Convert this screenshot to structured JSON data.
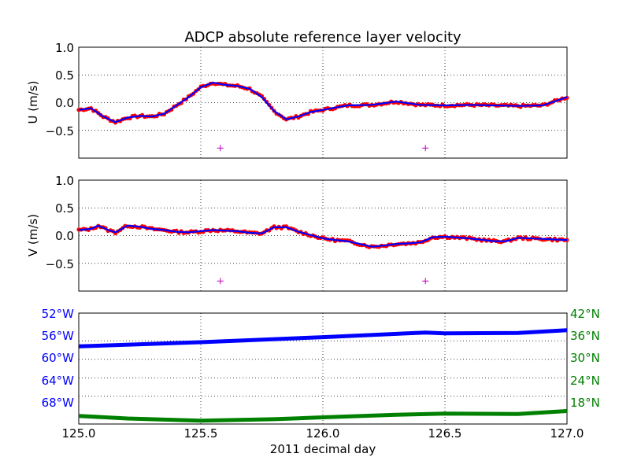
{
  "title": "ADCP absolute reference layer velocity",
  "xlabel": "2011 decimal day",
  "x_ticks": [
    "125.0",
    "125.5",
    "126.0",
    "126.5",
    "127.0"
  ],
  "colors": {
    "line": "#0000ff",
    "points": "#ff0000",
    "marker": "#bf00bf",
    "lon": "#0000ff",
    "lat": "#008000",
    "grid": "#000000"
  },
  "panels": {
    "u": {
      "ylabel": "U (m/s)",
      "y_ticks": [
        "1.0",
        "0.5",
        "0.0",
        "−0.5"
      ]
    },
    "v": {
      "ylabel": "V (m/s)",
      "y_ticks": [
        "1.0",
        "0.5",
        "0.0",
        "−0.5"
      ]
    },
    "pos": {
      "lon_ticks": [
        "52°W",
        "56°W",
        "60°W",
        "64°W",
        "68°W"
      ],
      "lat_ticks": [
        "42°N",
        "36°N",
        "30°N",
        "24°N",
        "18°N"
      ]
    }
  },
  "chart_data": [
    {
      "type": "scatter",
      "name": "U",
      "xlim": [
        125.0,
        127.0
      ],
      "ylim": [
        -1.0,
        1.0
      ],
      "grid": true,
      "x": [
        125.0,
        125.05,
        125.1,
        125.15,
        125.2,
        125.25,
        125.3,
        125.35,
        125.4,
        125.45,
        125.5,
        125.55,
        125.6,
        125.65,
        125.7,
        125.75,
        125.8,
        125.85,
        125.9,
        125.95,
        126.0,
        126.1,
        126.2,
        126.3,
        126.4,
        126.5,
        126.6,
        126.7,
        126.8,
        126.9,
        127.0
      ],
      "y": [
        -0.13,
        -0.1,
        -0.25,
        -0.35,
        -0.27,
        -0.24,
        -0.25,
        -0.2,
        -0.05,
        0.1,
        0.28,
        0.36,
        0.32,
        0.3,
        0.25,
        0.1,
        -0.15,
        -0.3,
        -0.25,
        -0.17,
        -0.13,
        -0.05,
        -0.04,
        0.02,
        -0.04,
        -0.05,
        -0.04,
        -0.05,
        -0.06,
        -0.05,
        0.1
      ],
      "markers": [
        {
          "x": 125.58,
          "y": -0.82
        },
        {
          "x": 126.42,
          "y": -0.82
        }
      ]
    },
    {
      "type": "scatter",
      "name": "V",
      "xlim": [
        125.0,
        127.0
      ],
      "ylim": [
        -1.0,
        1.0
      ],
      "grid": true,
      "x": [
        125.0,
        125.05,
        125.08,
        125.12,
        125.15,
        125.2,
        125.25,
        125.3,
        125.35,
        125.4,
        125.45,
        125.5,
        125.55,
        125.6,
        125.65,
        125.7,
        125.75,
        125.8,
        125.85,
        125.9,
        126.0,
        126.05,
        126.1,
        126.15,
        126.2,
        126.25,
        126.3,
        126.35,
        126.4,
        126.45,
        126.5,
        126.6,
        126.7,
        126.75,
        126.8,
        126.9,
        127.0
      ],
      "y": [
        0.1,
        0.12,
        0.18,
        0.1,
        0.06,
        0.18,
        0.16,
        0.12,
        0.1,
        0.07,
        0.06,
        0.08,
        0.1,
        0.09,
        0.08,
        0.05,
        0.04,
        0.15,
        0.15,
        0.07,
        -0.05,
        -0.08,
        -0.1,
        -0.15,
        -0.2,
        -0.18,
        -0.15,
        -0.14,
        -0.12,
        -0.03,
        -0.02,
        -0.05,
        -0.1,
        -0.1,
        -0.04,
        -0.06,
        -0.08
      ],
      "markers": [
        {
          "x": 125.58,
          "y": -0.82
        },
        {
          "x": 126.42,
          "y": -0.82
        }
      ]
    },
    {
      "type": "line",
      "name": "position",
      "xlim": [
        125.0,
        127.0
      ],
      "series": [
        {
          "axis": "left",
          "ylim": [
            -50,
            -74
          ],
          "x": [
            125.0,
            125.5,
            126.0,
            126.42,
            126.5,
            126.8,
            127.0
          ],
          "values": [
            -57.2,
            -56.3,
            -55.2,
            -54.2,
            -54.4,
            -54.3,
            -53.7
          ]
        },
        {
          "axis": "right",
          "ylim": [
            42,
            12
          ],
          "x": [
            125.0,
            125.2,
            125.5,
            125.8,
            126.0,
            126.3,
            126.5,
            126.8,
            127.0
          ],
          "values": [
            14.2,
            13.5,
            12.9,
            13.3,
            13.8,
            14.5,
            14.8,
            14.7,
            15.5
          ]
        }
      ]
    }
  ]
}
